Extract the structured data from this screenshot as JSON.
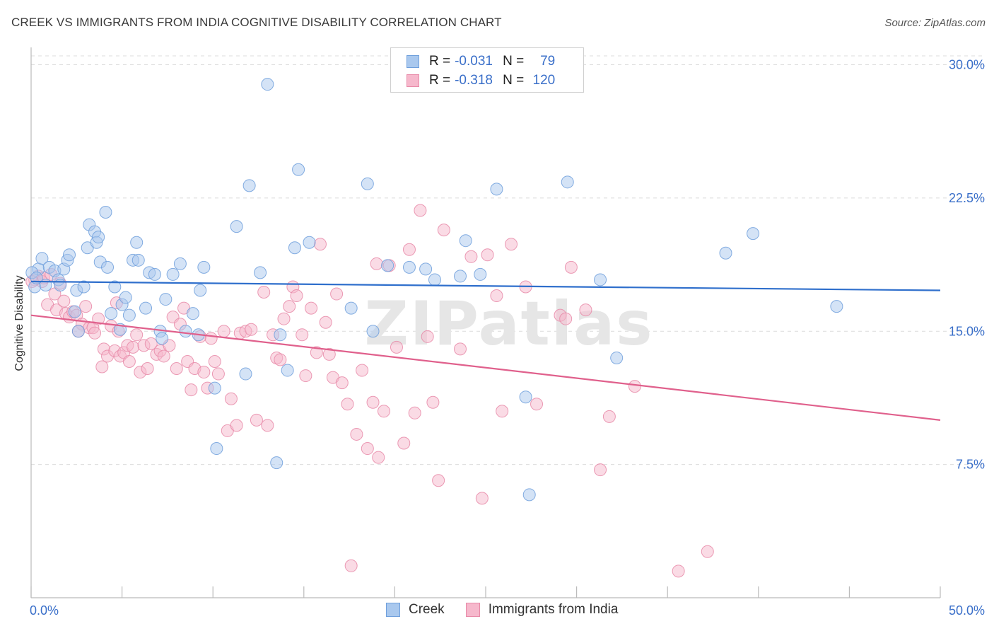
{
  "title": "CREEK VS IMMIGRANTS FROM INDIA COGNITIVE DISABILITY CORRELATION CHART",
  "source": "Source: ZipAtlas.com",
  "watermark": "ZIPatlas",
  "legend": {
    "series1": {
      "r_label": "R =",
      "r_value": "-0.031",
      "n_label": "N =",
      "n_value": "79"
    },
    "series2": {
      "r_label": "R =",
      "r_value": "-0.318",
      "n_label": "N =",
      "n_value": "120"
    }
  },
  "colors": {
    "creek_fill": "#a9c8ee",
    "creek_stroke": "#6f9fdc",
    "creek_line": "#2f6fcc",
    "india_fill": "#f6b8cc",
    "india_stroke": "#e88aa8",
    "india_line": "#e0608c",
    "tick_label": "#3a6fc9",
    "grid": "#dcdcdc"
  },
  "chart_data": {
    "type": "scatter",
    "xlabel": "",
    "ylabel": "Cognitive Disability",
    "xlim": [
      0,
      50
    ],
    "ylim": [
      0,
      30.5
    ],
    "x_tick_labels": [
      "0.0%",
      "50.0%"
    ],
    "y_ticks": [
      7.5,
      15.0,
      22.5,
      30.0
    ],
    "y_tick_labels": [
      "7.5%",
      "15.0%",
      "22.5%",
      "30.0%"
    ],
    "grid": true,
    "legend_position": "bottom",
    "series": [
      {
        "name": "Creek",
        "trend": [
          [
            0,
            17.8
          ],
          [
            50,
            17.3
          ]
        ],
        "points": [
          [
            0.2,
            17.5
          ],
          [
            0.4,
            18.5
          ],
          [
            0.6,
            19.1
          ],
          [
            0.8,
            17.6
          ],
          [
            1.0,
            18.6
          ],
          [
            1.3,
            18.4
          ],
          [
            1.5,
            17.9
          ],
          [
            1.6,
            17.6
          ],
          [
            1.8,
            18.5
          ],
          [
            2.0,
            19.0
          ],
          [
            2.1,
            19.3
          ],
          [
            2.4,
            16.1
          ],
          [
            2.5,
            17.3
          ],
          [
            2.6,
            15.0
          ],
          [
            2.9,
            17.5
          ],
          [
            3.1,
            19.7
          ],
          [
            3.2,
            21.0
          ],
          [
            3.5,
            20.6
          ],
          [
            3.6,
            20.0
          ],
          [
            3.7,
            20.3
          ],
          [
            3.8,
            18.9
          ],
          [
            4.1,
            21.7
          ],
          [
            4.2,
            18.6
          ],
          [
            4.4,
            16.0
          ],
          [
            4.6,
            17.5
          ],
          [
            4.9,
            15.1
          ],
          [
            5.0,
            16.5
          ],
          [
            5.2,
            16.9
          ],
          [
            5.4,
            15.9
          ],
          [
            5.6,
            19.0
          ],
          [
            5.8,
            20.0
          ],
          [
            5.9,
            19.0
          ],
          [
            6.3,
            16.3
          ],
          [
            6.5,
            18.3
          ],
          [
            6.8,
            18.2
          ],
          [
            7.1,
            15.0
          ],
          [
            7.2,
            14.6
          ],
          [
            7.4,
            16.8
          ],
          [
            7.8,
            18.2
          ],
          [
            8.2,
            18.8
          ],
          [
            8.5,
            15.0
          ],
          [
            8.9,
            16.0
          ],
          [
            9.2,
            14.8
          ],
          [
            9.3,
            17.3
          ],
          [
            9.5,
            18.6
          ],
          [
            10.1,
            11.8
          ],
          [
            10.2,
            8.4
          ],
          [
            11.3,
            20.9
          ],
          [
            11.8,
            12.6
          ],
          [
            12.0,
            23.2
          ],
          [
            12.6,
            18.3
          ],
          [
            13.0,
            28.9
          ],
          [
            13.5,
            7.6
          ],
          [
            13.7,
            14.8
          ],
          [
            14.1,
            12.8
          ],
          [
            14.5,
            19.7
          ],
          [
            14.7,
            24.1
          ],
          [
            15.3,
            20.0
          ],
          [
            17.6,
            16.3
          ],
          [
            18.5,
            23.3
          ],
          [
            18.8,
            15.0
          ],
          [
            19.6,
            18.7
          ],
          [
            20.8,
            18.6
          ],
          [
            21.7,
            18.5
          ],
          [
            22.2,
            17.9
          ],
          [
            23.6,
            18.1
          ],
          [
            23.9,
            20.1
          ],
          [
            24.7,
            18.2
          ],
          [
            25.6,
            23.0
          ],
          [
            27.2,
            11.3
          ],
          [
            27.4,
            5.8
          ],
          [
            29.5,
            23.4
          ],
          [
            31.3,
            17.9
          ],
          [
            32.2,
            13.5
          ],
          [
            38.2,
            19.4
          ],
          [
            39.7,
            20.5
          ],
          [
            44.3,
            16.4
          ],
          [
            0.05,
            18.3
          ],
          [
            0.3,
            18.0
          ]
        ]
      },
      {
        "name": "Immigrants from India",
        "trend": [
          [
            0,
            15.9
          ],
          [
            50,
            10.0
          ]
        ],
        "points": [
          [
            0.2,
            17.9
          ],
          [
            0.4,
            18.1
          ],
          [
            0.6,
            17.8
          ],
          [
            0.7,
            18.0
          ],
          [
            0.9,
            16.5
          ],
          [
            1.1,
            18.2
          ],
          [
            1.3,
            17.1
          ],
          [
            1.4,
            16.2
          ],
          [
            1.6,
            17.7
          ],
          [
            1.9,
            16.0
          ],
          [
            2.1,
            15.8
          ],
          [
            2.3,
            16.1
          ],
          [
            2.5,
            15.9
          ],
          [
            2.8,
            15.4
          ],
          [
            3.0,
            16.4
          ],
          [
            3.2,
            15.2
          ],
          [
            3.4,
            15.2
          ],
          [
            3.5,
            14.9
          ],
          [
            3.7,
            15.7
          ],
          [
            3.9,
            13.0
          ],
          [
            4.0,
            14.0
          ],
          [
            4.2,
            13.6
          ],
          [
            4.4,
            15.3
          ],
          [
            4.6,
            13.9
          ],
          [
            4.7,
            16.6
          ],
          [
            4.9,
            13.6
          ],
          [
            5.1,
            13.8
          ],
          [
            5.3,
            14.2
          ],
          [
            5.4,
            13.3
          ],
          [
            5.6,
            14.1
          ],
          [
            5.8,
            14.8
          ],
          [
            6.0,
            12.7
          ],
          [
            6.2,
            14.2
          ],
          [
            6.4,
            12.9
          ],
          [
            6.6,
            14.3
          ],
          [
            6.9,
            13.7
          ],
          [
            7.1,
            13.9
          ],
          [
            7.3,
            13.6
          ],
          [
            7.6,
            14.2
          ],
          [
            7.8,
            15.8
          ],
          [
            8.0,
            12.9
          ],
          [
            8.2,
            15.4
          ],
          [
            8.4,
            16.3
          ],
          [
            8.6,
            13.3
          ],
          [
            8.8,
            11.7
          ],
          [
            9.0,
            12.9
          ],
          [
            9.3,
            14.7
          ],
          [
            9.5,
            12.7
          ],
          [
            9.7,
            11.8
          ],
          [
            9.9,
            14.6
          ],
          [
            10.1,
            13.3
          ],
          [
            10.3,
            12.6
          ],
          [
            10.6,
            15.0
          ],
          [
            10.8,
            9.4
          ],
          [
            11.0,
            11.2
          ],
          [
            11.3,
            9.7
          ],
          [
            11.5,
            14.9
          ],
          [
            11.8,
            15.0
          ],
          [
            12.1,
            15.1
          ],
          [
            12.4,
            10.0
          ],
          [
            12.8,
            17.2
          ],
          [
            13.0,
            9.7
          ],
          [
            13.3,
            14.8
          ],
          [
            13.5,
            13.5
          ],
          [
            13.7,
            13.4
          ],
          [
            13.9,
            15.7
          ],
          [
            14.2,
            16.4
          ],
          [
            14.4,
            17.5
          ],
          [
            14.6,
            17.0
          ],
          [
            14.9,
            14.8
          ],
          [
            15.1,
            12.5
          ],
          [
            15.4,
            16.3
          ],
          [
            15.7,
            13.8
          ],
          [
            15.9,
            19.9
          ],
          [
            16.2,
            15.5
          ],
          [
            16.4,
            13.7
          ],
          [
            16.6,
            12.4
          ],
          [
            16.8,
            17.1
          ],
          [
            17.1,
            12.1
          ],
          [
            17.4,
            10.9
          ],
          [
            17.6,
            1.8
          ],
          [
            17.9,
            9.2
          ],
          [
            18.2,
            12.8
          ],
          [
            18.5,
            8.4
          ],
          [
            18.8,
            11.0
          ],
          [
            19.1,
            7.9
          ],
          [
            19.4,
            10.5
          ],
          [
            19.7,
            18.7
          ],
          [
            20.1,
            14.1
          ],
          [
            20.5,
            8.7
          ],
          [
            20.8,
            19.6
          ],
          [
            21.1,
            10.4
          ],
          [
            21.4,
            21.8
          ],
          [
            21.8,
            14.7
          ],
          [
            22.1,
            11.0
          ],
          [
            22.4,
            6.6
          ],
          [
            22.7,
            20.7
          ],
          [
            23.6,
            14.0
          ],
          [
            24.2,
            19.2
          ],
          [
            24.8,
            5.6
          ],
          [
            25.1,
            19.3
          ],
          [
            25.6,
            17.0
          ],
          [
            25.9,
            10.5
          ],
          [
            26.4,
            19.9
          ],
          [
            27.2,
            17.5
          ],
          [
            27.8,
            10.9
          ],
          [
            29.1,
            15.9
          ],
          [
            29.4,
            15.7
          ],
          [
            29.7,
            18.6
          ],
          [
            30.5,
            16.2
          ],
          [
            31.3,
            7.2
          ],
          [
            31.8,
            10.2
          ],
          [
            33.2,
            11.9
          ],
          [
            35.6,
            1.5
          ],
          [
            37.2,
            2.6
          ],
          [
            19.0,
            18.8
          ],
          [
            0.05,
            17.8
          ],
          [
            1.8,
            16.7
          ],
          [
            2.6,
            15.0
          ],
          [
            4.8,
            15.0
          ]
        ]
      }
    ]
  }
}
